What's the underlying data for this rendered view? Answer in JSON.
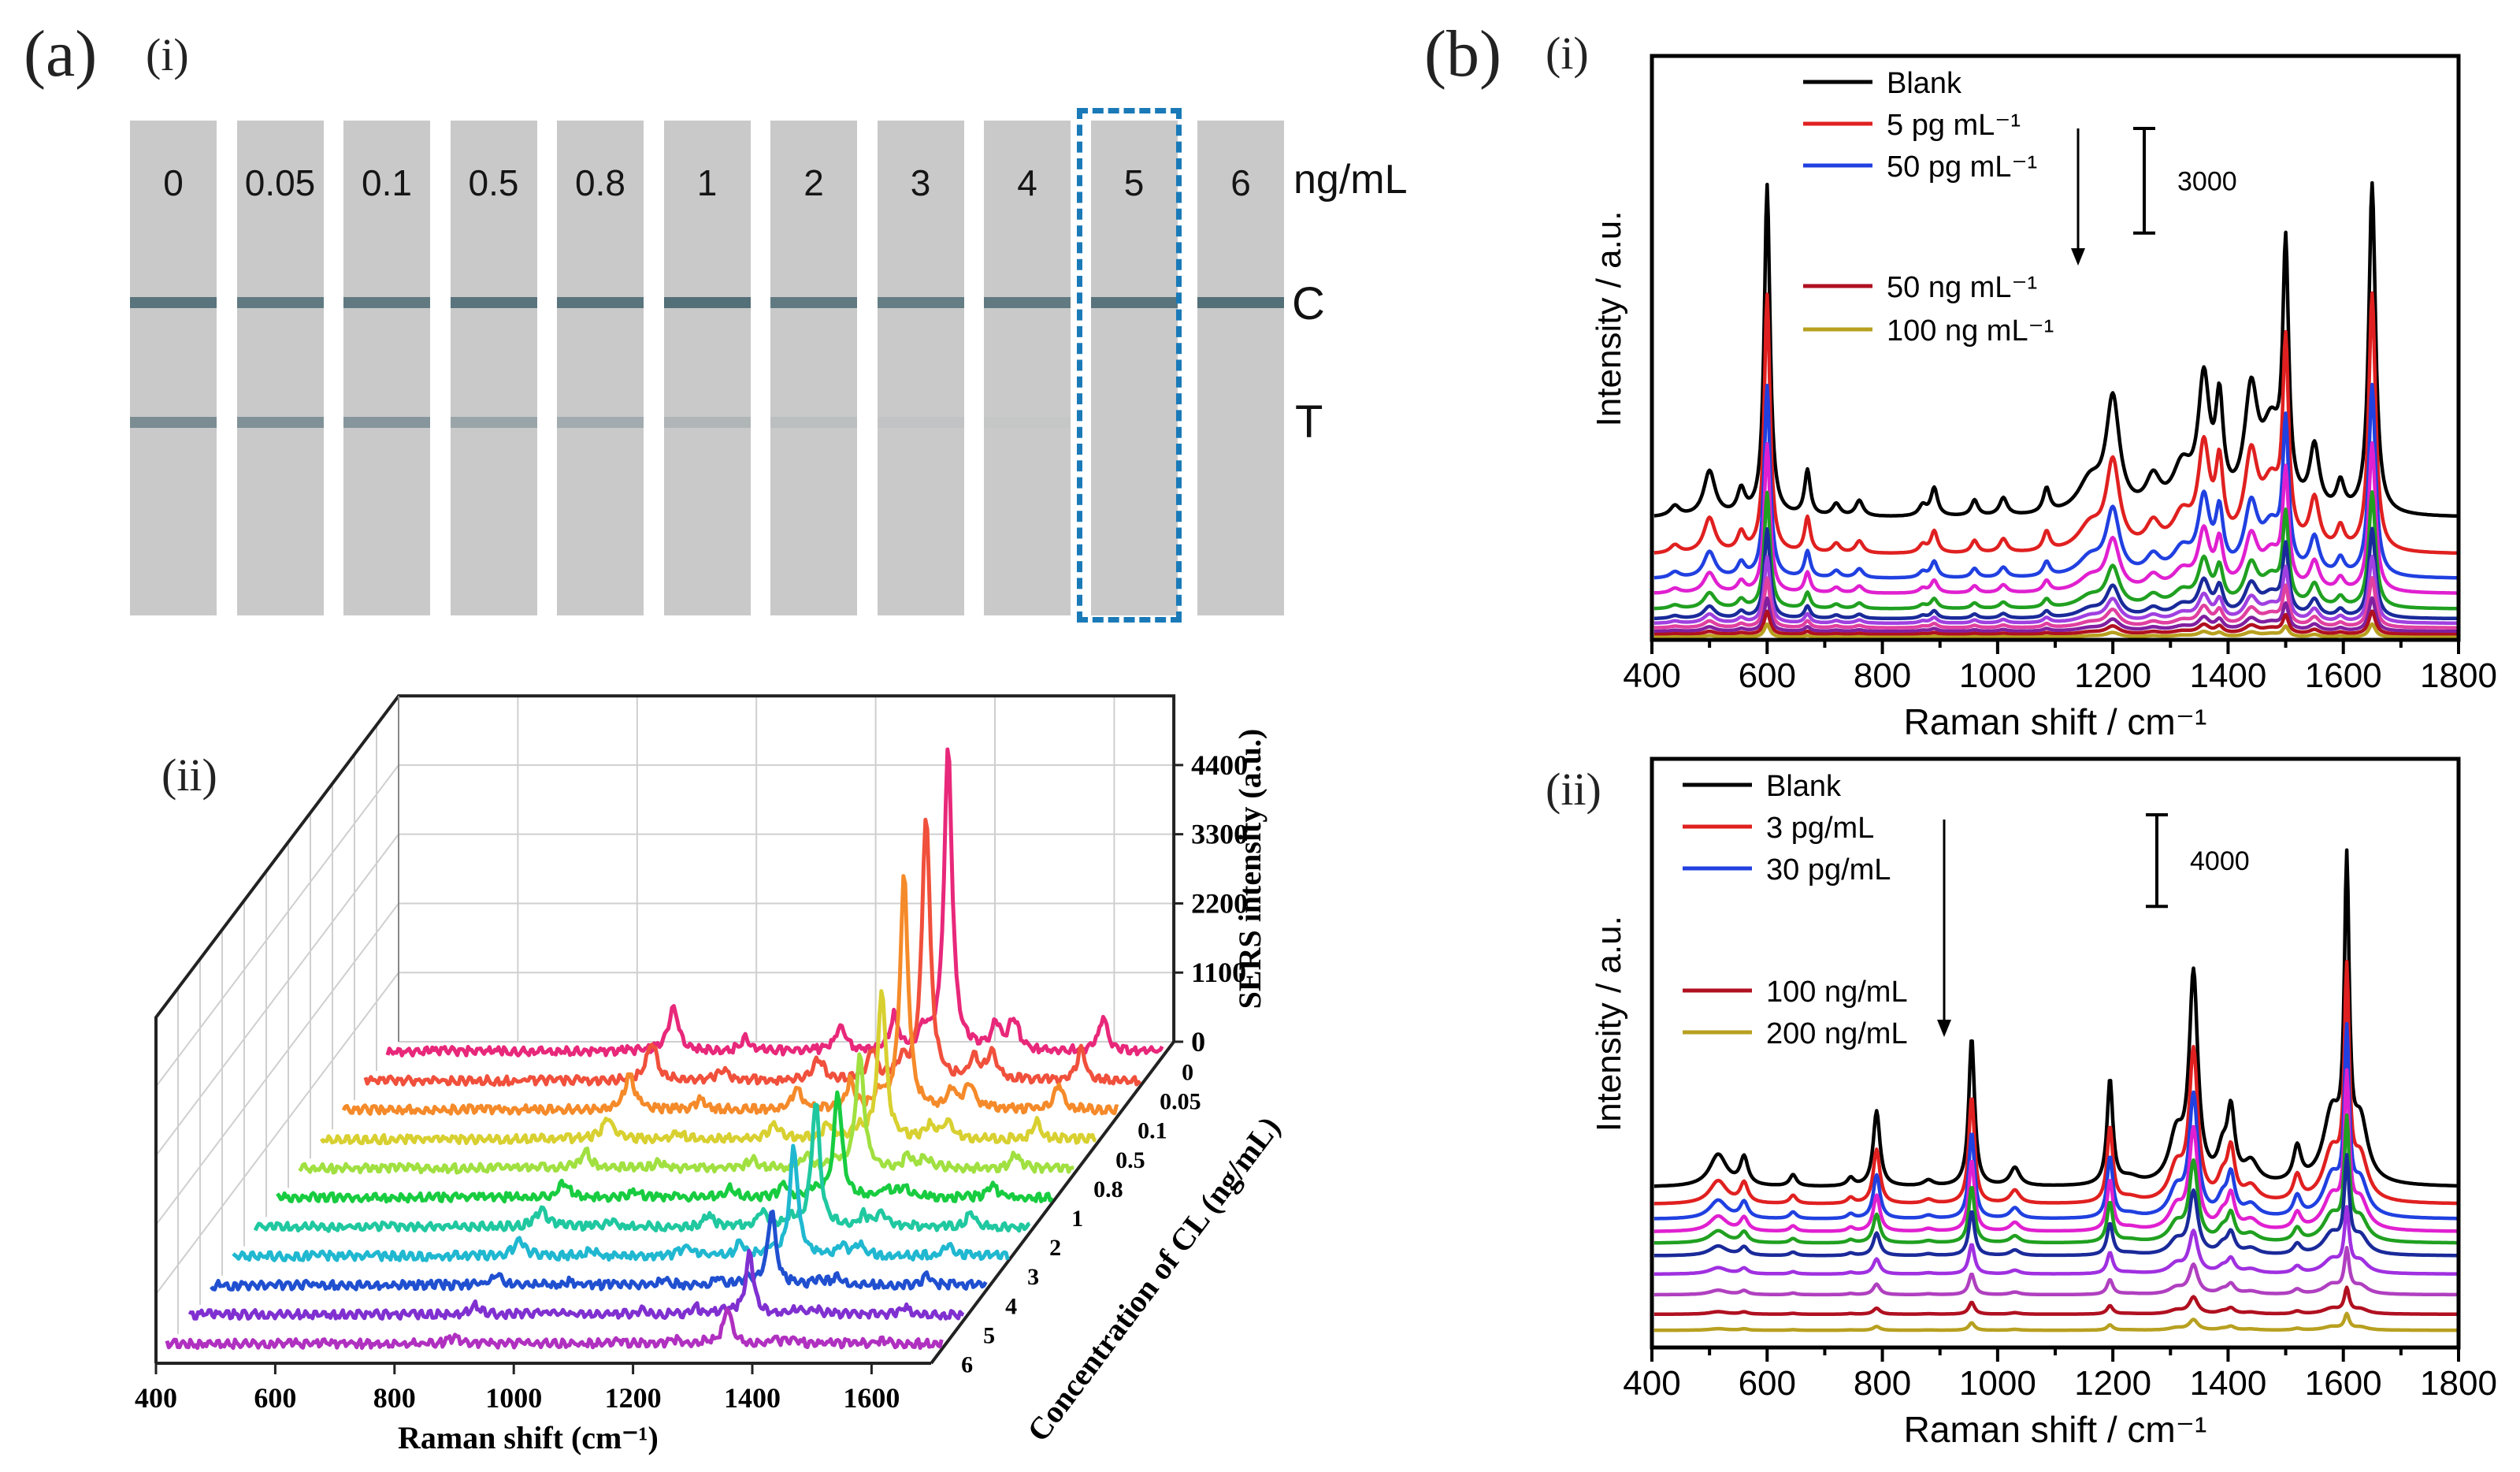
{
  "panel_labels": {
    "a": "(a)",
    "a_i": "(i)",
    "a_ii": "(ii)",
    "b": "(b)",
    "b_i": "(i)",
    "b_ii": "(ii)"
  },
  "strip_test": {
    "concentrations": [
      "0",
      "0.05",
      "0.1",
      "0.5",
      "0.8",
      "1",
      "2",
      "3",
      "4",
      "5",
      "6"
    ],
    "unit": "ng/mL",
    "control_label": "C",
    "test_label": "T",
    "highlighted_strip": "5",
    "control_line_intensity": [
      0.8,
      0.75,
      0.75,
      0.8,
      0.8,
      0.85,
      0.75,
      0.72,
      0.75,
      0.8,
      0.85
    ],
    "test_line_intensity": [
      0.7,
      0.65,
      0.6,
      0.42,
      0.35,
      0.22,
      0.12,
      0.06,
      0.03,
      0.0,
      0.0
    ],
    "colors": {
      "strip": "#c9c9c9",
      "line": "#3e5f6a",
      "highlight": "#1a7ab8"
    }
  },
  "chart_data": [
    {
      "id": "a_ii",
      "type": "line",
      "subtype": "3d-waterfall",
      "xlabel": "Raman shift (cm⁻¹)",
      "ylabel": "Concentration of CL (ng/mL)",
      "zlabel": "SERS intensity (a.u.)",
      "xlim": [
        400,
        1700
      ],
      "zlim": [
        0,
        5500
      ],
      "xticks": [
        "400",
        "600",
        "800",
        "1000",
        "1200",
        "1400",
        "1600"
      ],
      "zticks": [
        "0",
        "1100",
        "2200",
        "3300",
        "4400"
      ],
      "grid": true,
      "peaks_cm": [
        [
          880,
          700,
          10
        ],
        [
          1000,
          200,
          10
        ],
        [
          1160,
          400,
          10
        ],
        [
          1250,
          550,
          8
        ],
        [
          1300,
          300,
          10
        ],
        [
          1340,
          4800,
          8
        ],
        [
          1420,
          400,
          8
        ],
        [
          1450,
          500,
          10
        ],
        [
          1600,
          550,
          8
        ]
      ],
      "series": [
        {
          "name": "0",
          "color": "#e8287a",
          "scale": 1.0
        },
        {
          "name": "0.05",
          "color": "#f0503c",
          "scale": 0.88
        },
        {
          "name": "0.1",
          "color": "#f58a2a",
          "scale": 0.78
        },
        {
          "name": "0.5",
          "color": "#d8d030",
          "scale": 0.5
        },
        {
          "name": "0.8",
          "color": "#a0e040",
          "scale": 0.38
        },
        {
          "name": "1",
          "color": "#18cc40",
          "scale": 0.35
        },
        {
          "name": "2",
          "color": "#20c8a0",
          "scale": 0.42
        },
        {
          "name": "3",
          "color": "#20b8d0",
          "scale": 0.36
        },
        {
          "name": "4",
          "color": "#2050d0",
          "scale": 0.25
        },
        {
          "name": "5",
          "color": "#8030d0",
          "scale": 0.2
        },
        {
          "name": "6",
          "color": "#b030c0",
          "scale": 0.12
        }
      ]
    },
    {
      "id": "b_i",
      "type": "line",
      "xlabel": "Raman shift / cm⁻¹",
      "ylabel": "Intensity / a.u.",
      "xlim": [
        400,
        1800
      ],
      "ylim": [
        0,
        16750
      ],
      "xticks": [
        "400",
        "600",
        "800",
        "1000",
        "1200",
        "1400",
        "1600",
        "1800"
      ],
      "scale_bar": {
        "value": 3000,
        "label": "3000"
      },
      "legend": [
        {
          "label": "Blank",
          "color": "#000000"
        },
        {
          "label": "5 pg mL⁻¹",
          "color": "#e02020"
        },
        {
          "label": "50 pg mL⁻¹",
          "color": "#2040e0"
        },
        {
          "label": "50 ng mL⁻¹",
          "color": "#b01020"
        },
        {
          "label": "100 ng mL⁻¹",
          "color": "#b8a020"
        }
      ],
      "legend_position": "top-left",
      "peaks_cm": [
        [
          440,
          300,
          10
        ],
        [
          500,
          1300,
          12
        ],
        [
          555,
          700,
          8
        ],
        [
          600,
          9500,
          6
        ],
        [
          670,
          1300,
          6
        ],
        [
          720,
          350,
          8
        ],
        [
          760,
          450,
          8
        ],
        [
          870,
          300,
          8
        ],
        [
          890,
          800,
          7
        ],
        [
          960,
          450,
          7
        ],
        [
          1010,
          500,
          8
        ],
        [
          1085,
          700,
          7
        ],
        [
          1160,
          900,
          25
        ],
        [
          1200,
          3200,
          14
        ],
        [
          1270,
          900,
          15
        ],
        [
          1320,
          1200,
          20
        ],
        [
          1358,
          3600,
          12
        ],
        [
          1385,
          2800,
          8
        ],
        [
          1440,
          3200,
          14
        ],
        [
          1475,
          2200,
          20
        ],
        [
          1500,
          7000,
          6
        ],
        [
          1550,
          1800,
          10
        ],
        [
          1595,
          800,
          8
        ],
        [
          1650,
          9500,
          7
        ]
      ],
      "series": [
        {
          "color": "#000000",
          "offset": 3500,
          "scale": 1.0
        },
        {
          "color": "#e02020",
          "offset": 2450,
          "scale": 0.78
        },
        {
          "color": "#2040e0",
          "offset": 1750,
          "scale": 0.58
        },
        {
          "color": "#e020d0",
          "offset": 1320,
          "scale": 0.45
        },
        {
          "color": "#20a020",
          "offset": 880,
          "scale": 0.35
        },
        {
          "color": "#1a2a9a",
          "offset": 600,
          "scale": 0.27
        },
        {
          "color": "#a040e0",
          "offset": 470,
          "scale": 0.2
        },
        {
          "color": "#e040a0",
          "offset": 340,
          "scale": 0.15
        },
        {
          "color": "#8020a0",
          "offset": 240,
          "scale": 0.1
        },
        {
          "color": "#b01020",
          "offset": 150,
          "scale": 0.07
        },
        {
          "color": "#b8a020",
          "offset": 70,
          "scale": 0.04
        }
      ]
    },
    {
      "id": "b_ii",
      "type": "line",
      "xlabel": "Raman shift / cm⁻¹",
      "ylabel": "Intensity / a.u.",
      "xlim": [
        400,
        1800
      ],
      "ylim": [
        0,
        25700
      ],
      "xticks": [
        "400",
        "600",
        "800",
        "1000",
        "1200",
        "1400",
        "1600",
        "1800"
      ],
      "scale_bar": {
        "value": 4000,
        "label": "4000"
      },
      "legend": [
        {
          "label": "Blank",
          "color": "#000000"
        },
        {
          "label": "3 pg/mL",
          "color": "#e02020"
        },
        {
          "label": "30 pg/mL",
          "color": "#2040e0"
        },
        {
          "label": "100 ng/mL",
          "color": "#b01020"
        },
        {
          "label": "200 ng/mL",
          "color": "#b8a020"
        }
      ],
      "legend_position": "top-left",
      "peaks_cm": [
        [
          515,
          1400,
          18
        ],
        [
          560,
          1200,
          8
        ],
        [
          645,
          500,
          7
        ],
        [
          745,
          350,
          7
        ],
        [
          790,
          3300,
          7
        ],
        [
          880,
          250,
          10
        ],
        [
          955,
          6500,
          6
        ],
        [
          1030,
          800,
          10
        ],
        [
          1195,
          4600,
          6
        ],
        [
          1230,
          300,
          20
        ],
        [
          1310,
          2000,
          15
        ],
        [
          1340,
          9000,
          9
        ],
        [
          1390,
          1200,
          10
        ],
        [
          1405,
          3000,
          8
        ],
        [
          1440,
          900,
          15
        ],
        [
          1520,
          1500,
          8
        ],
        [
          1580,
          3000,
          18
        ],
        [
          1606,
          13000,
          5
        ],
        [
          1630,
          2500,
          15
        ]
      ],
      "series": [
        {
          "color": "#000000",
          "offset": 7000,
          "scale": 1.0
        },
        {
          "color": "#e02020",
          "offset": 6250,
          "scale": 0.72
        },
        {
          "color": "#2040e0",
          "offset": 5600,
          "scale": 0.58
        },
        {
          "color": "#e020d0",
          "offset": 5050,
          "scale": 0.48
        },
        {
          "color": "#20a020",
          "offset": 4550,
          "scale": 0.38
        },
        {
          "color": "#1a2a9a",
          "offset": 4000,
          "scale": 0.3
        },
        {
          "color": "#a030e0",
          "offset": 3200,
          "scale": 0.2
        },
        {
          "color": "#b040c0",
          "offset": 2300,
          "scale": 0.14
        },
        {
          "color": "#b01020",
          "offset": 1450,
          "scale": 0.08
        },
        {
          "color": "#b8a020",
          "offset": 750,
          "scale": 0.05
        }
      ]
    }
  ]
}
